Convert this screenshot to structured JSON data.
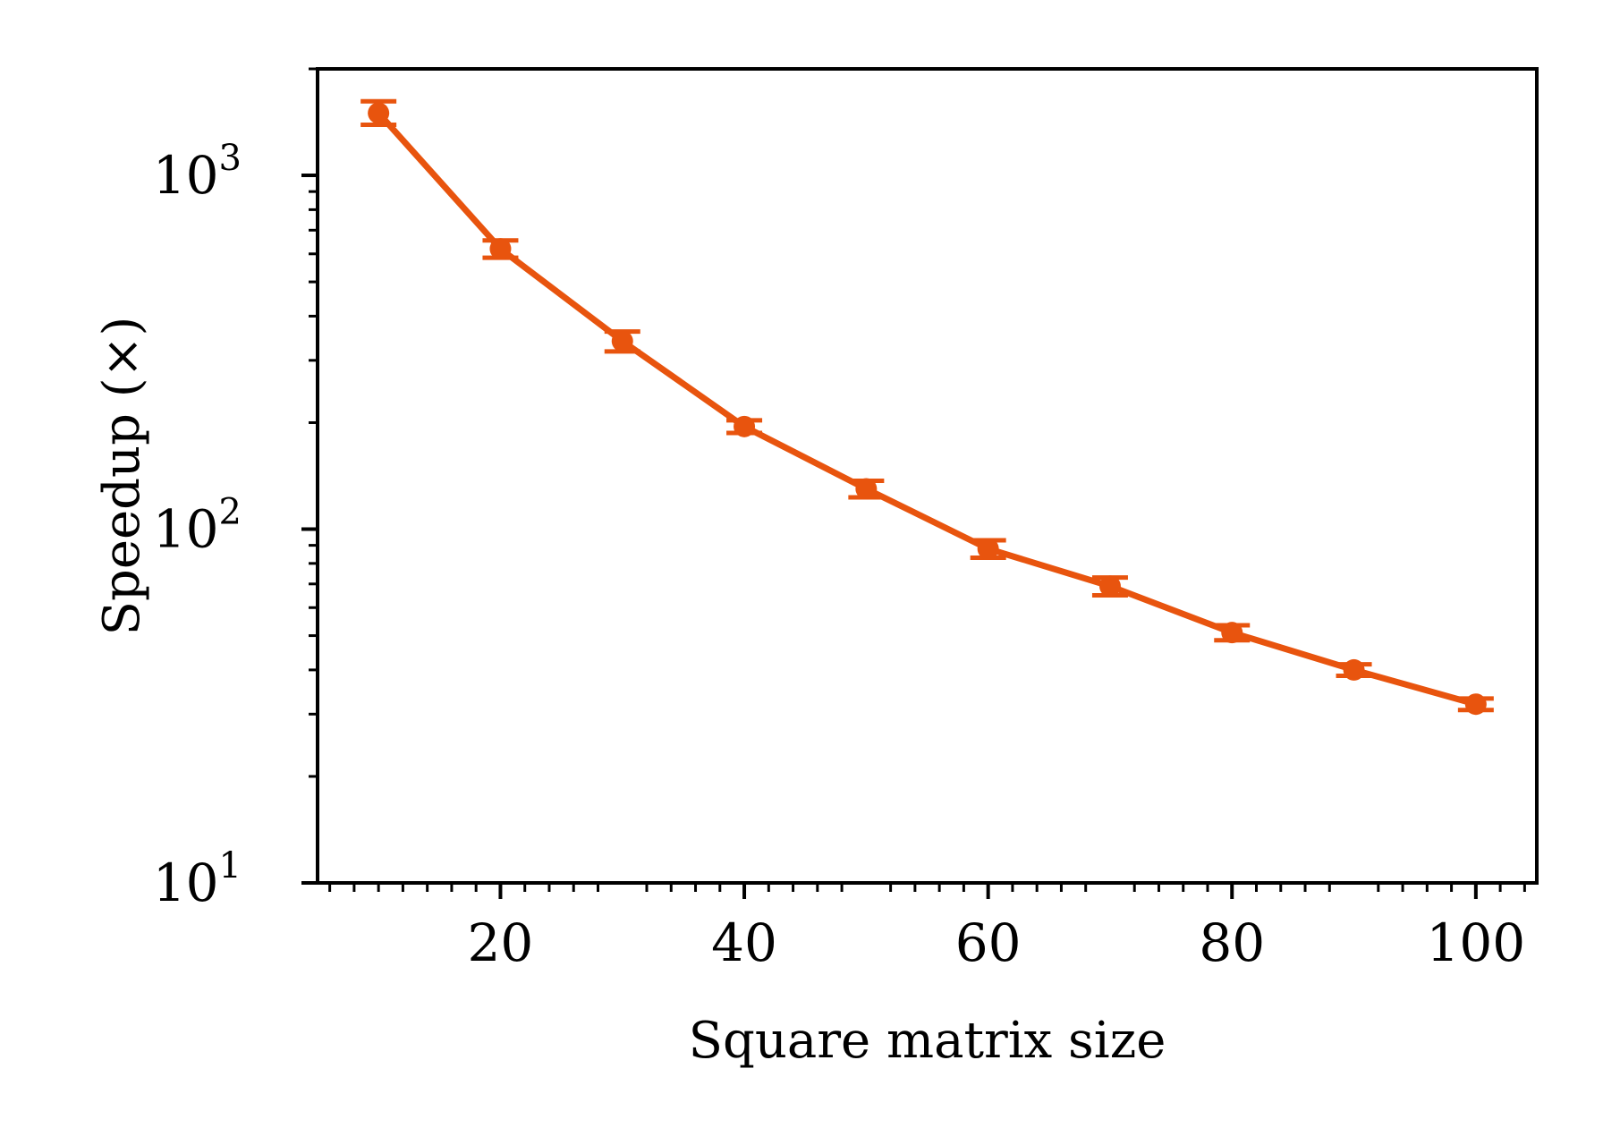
{
  "chart_data": {
    "type": "line",
    "title": "",
    "xlabel": "Square matrix size",
    "ylabel": "Speedup (×)",
    "xlim": [
      5,
      105
    ],
    "ylim": [
      10,
      2000
    ],
    "xscale": "linear",
    "yscale": "log",
    "xticks": [
      20,
      40,
      60,
      80,
      100
    ],
    "xtick_labels": [
      "20",
      "40",
      "60",
      "80",
      100
    ],
    "yticks": [
      10,
      100,
      1000
    ],
    "ytick_labels": [
      {
        "base": "10",
        "exp": "1"
      },
      {
        "base": "10",
        "exp": "2"
      },
      {
        "base": "10",
        "exp": "3"
      }
    ],
    "grid": false,
    "legend": "none",
    "series": [
      {
        "color": "#e8540e",
        "marker": "circle",
        "x": [
          10,
          20,
          30,
          40,
          50,
          60,
          70,
          80,
          90,
          100
        ],
        "y": [
          1500,
          620,
          340,
          195,
          130,
          88,
          69,
          51,
          40,
          32
        ],
        "err_low": [
          1390,
          585,
          318,
          187,
          123,
          83,
          65,
          48.5,
          38.5,
          30.8
        ],
        "err_high": [
          1620,
          655,
          362,
          203,
          137,
          93,
          73,
          53.5,
          41.5,
          33.2
        ]
      }
    ]
  }
}
